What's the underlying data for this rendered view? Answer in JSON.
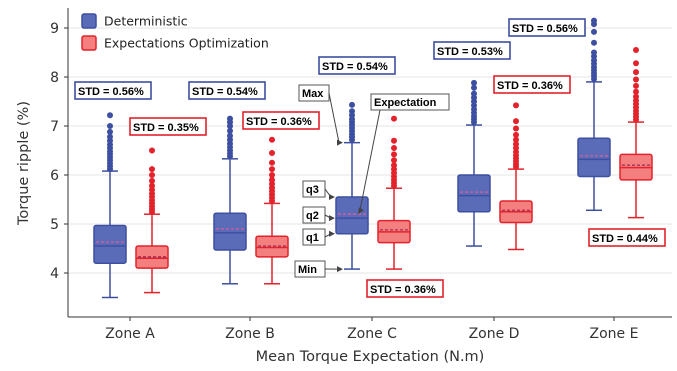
{
  "chart_data": {
    "type": "box",
    "xlabel": "Mean Torque Expectation (N.m)",
    "ylabel": "Torque ripple (%)",
    "ylim": [
      3.2,
      9.4
    ],
    "yticks": [
      4,
      5,
      6,
      7,
      8,
      9
    ],
    "categories": [
      "Zone A",
      "Zone B",
      "Zone C",
      "Zone D",
      "Zone E"
    ],
    "legend": {
      "placement": "top-left"
    },
    "series": [
      {
        "name": "Deterministic",
        "color": "#3d4fa0",
        "fill": "#5a6cb8",
        "boxes": [
          {
            "category": "Zone A",
            "min": 3.5,
            "q1": 4.2,
            "median": 4.55,
            "mean": 4.63,
            "q3": 4.97,
            "max": 6.08,
            "outliers": [
              6.12,
              6.18,
              6.24,
              6.3,
              6.36,
              6.42,
              6.48,
              6.55,
              6.62,
              6.7,
              6.78,
              6.88,
              7.0,
              7.22
            ],
            "std_label": "STD = 0.56%"
          },
          {
            "category": "Zone B",
            "min": 3.78,
            "q1": 4.47,
            "median": 4.82,
            "mean": 4.9,
            "q3": 5.22,
            "max": 6.33,
            "outliers": [
              6.38,
              6.44,
              6.5,
              6.57,
              6.64,
              6.72,
              6.8,
              6.9,
              7.0,
              7.08,
              7.15
            ],
            "std_label": "STD = 0.54%"
          },
          {
            "category": "Zone C",
            "min": 4.08,
            "q1": 4.8,
            "median": 5.12,
            "mean": 5.2,
            "q3": 5.55,
            "max": 6.66,
            "outliers": [
              6.72,
              6.78,
              6.84,
              6.9,
              6.96,
              7.02,
              7.08,
              7.14,
              7.22,
              7.3,
              7.43
            ],
            "std_label": "STD = 0.54%"
          },
          {
            "category": "Zone D",
            "min": 4.55,
            "q1": 5.25,
            "median": 5.58,
            "mean": 5.65,
            "q3": 6.0,
            "max": 7.02,
            "outliers": [
              7.08,
              7.14,
              7.2,
              7.27,
              7.34,
              7.42,
              7.5,
              7.58,
              7.66,
              7.78,
              7.88
            ],
            "std_label": "STD = 0.53%"
          },
          {
            "category": "Zone E",
            "min": 5.28,
            "q1": 5.97,
            "median": 6.32,
            "mean": 6.39,
            "q3": 6.75,
            "max": 7.9,
            "outliers": [
              7.96,
              8.02,
              8.08,
              8.14,
              8.2,
              8.27,
              8.34,
              8.42,
              8.5,
              8.7,
              8.92,
              9.08,
              9.15
            ],
            "std_label": "STD = 0.56%"
          }
        ]
      },
      {
        "name": "Expectations Optimization",
        "color": "#e3222c",
        "fill": "#f47f7f",
        "boxes": [
          {
            "category": "Zone A",
            "min": 3.6,
            "q1": 4.1,
            "median": 4.3,
            "mean": 4.33,
            "q3": 4.55,
            "max": 5.2,
            "outliers": [
              5.25,
              5.3,
              5.36,
              5.42,
              5.48,
              5.55,
              5.62,
              5.7,
              5.78,
              5.88,
              6.0,
              6.12,
              6.5
            ],
            "std_label": "STD = 0.35%"
          },
          {
            "category": "Zone B",
            "min": 3.78,
            "q1": 4.33,
            "median": 4.52,
            "mean": 4.55,
            "q3": 4.75,
            "max": 5.42,
            "outliers": [
              5.47,
              5.53,
              5.6,
              5.67,
              5.74,
              5.82,
              5.9,
              6.0,
              6.12,
              6.25,
              6.45,
              6.72
            ],
            "std_label": "STD = 0.36%"
          },
          {
            "category": "Zone C",
            "min": 4.08,
            "q1": 4.62,
            "median": 4.84,
            "mean": 4.88,
            "q3": 5.07,
            "max": 5.73,
            "outliers": [
              5.78,
              5.84,
              5.9,
              5.97,
              6.04,
              6.12,
              6.2,
              6.3,
              6.42,
              6.55,
              6.7,
              7.15
            ],
            "std_label": "STD = 0.36%"
          },
          {
            "category": "Zone D",
            "min": 4.48,
            "q1": 5.03,
            "median": 5.25,
            "mean": 5.28,
            "q3": 5.47,
            "max": 6.12,
            "outliers": [
              6.17,
              6.22,
              6.28,
              6.34,
              6.4,
              6.47,
              6.55,
              6.63,
              6.72,
              6.82,
              6.95,
              7.1,
              7.42
            ],
            "std_label": "STD = 0.36%"
          },
          {
            "category": "Zone E",
            "min": 5.13,
            "q1": 5.9,
            "median": 6.15,
            "mean": 6.2,
            "q3": 6.42,
            "max": 7.08,
            "outliers": [
              7.13,
              7.19,
              7.25,
              7.31,
              7.38,
              7.45,
              7.52,
              7.6,
              7.7,
              7.82,
              7.95,
              8.1,
              8.28,
              8.55
            ],
            "std_label": "STD = 0.44%"
          }
        ]
      }
    ],
    "annotations": {
      "max": "Max",
      "q3": "q3",
      "q2": "q2",
      "q1": "q1",
      "min": "Min",
      "expectation": "Expectation"
    }
  }
}
